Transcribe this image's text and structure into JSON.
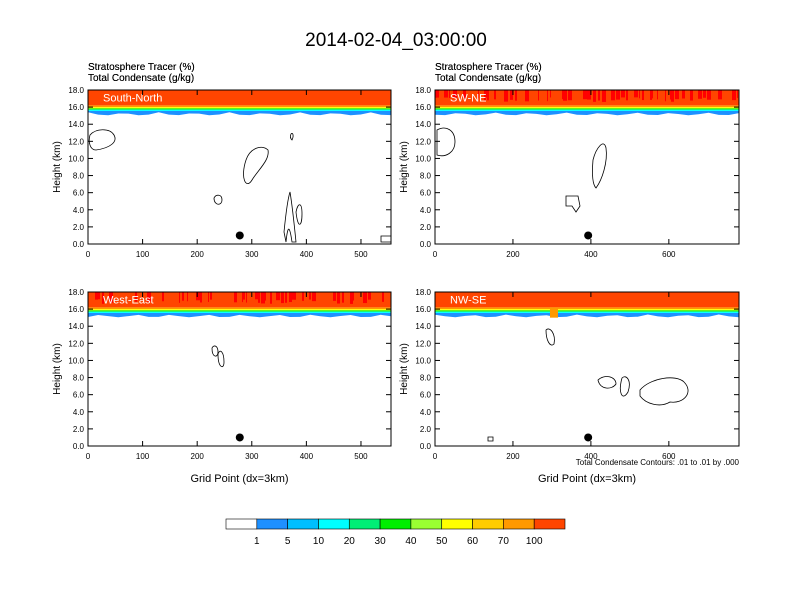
{
  "title": "2014-02-04_03:00:00",
  "chart_data": [
    {
      "type": "heatmap",
      "panel_label": "South-North",
      "field_label_1": "Stratosphere Tracer",
      "field_unit_1": "(%)",
      "field_label_2": "Total Condensate",
      "field_unit_2": "(g/kg)",
      "ylabel": "Height (km)",
      "xlabel": "",
      "ylim": [
        0,
        18
      ],
      "yticks": [
        "0.0",
        "2.0",
        "4.0",
        "6.0",
        "8.0",
        "10.0",
        "12.0",
        "14.0",
        "16.0",
        "18.0"
      ],
      "xlim": [
        0,
        555
      ],
      "xticks": [
        0,
        100,
        200,
        300,
        400,
        500
      ],
      "marker_x": 278,
      "marker_y": 1.0,
      "footnote": ""
    },
    {
      "type": "heatmap",
      "panel_label": "SW-NE",
      "field_label_1": "Stratosphere Tracer",
      "field_unit_1": "(%)",
      "field_label_2": "Total Condensate",
      "field_unit_2": "(g/kg)",
      "ylabel": "Height (km)",
      "xlabel": "",
      "ylim": [
        0,
        18
      ],
      "yticks": [
        "0.0",
        "2.0",
        "4.0",
        "6.0",
        "8.0",
        "10.0",
        "12.0",
        "14.0",
        "16.0",
        "18.0"
      ],
      "xlim": [
        0,
        780
      ],
      "xticks": [
        0,
        200,
        400,
        600
      ],
      "marker_x": 393,
      "marker_y": 1.0,
      "footnote": ""
    },
    {
      "type": "heatmap",
      "panel_label": "West-East",
      "field_label_1": "Stratosphere Tracer",
      "field_unit_1": "(%)",
      "field_label_2": "Total Condensate",
      "field_unit_2": "(g/kg)",
      "ylabel": "Height (km)",
      "xlabel": "Grid Point (dx=3km)",
      "ylim": [
        0,
        18
      ],
      "yticks": [
        "0.0",
        "2.0",
        "4.0",
        "6.0",
        "8.0",
        "10.0",
        "12.0",
        "14.0",
        "16.0",
        "18.0"
      ],
      "xlim": [
        0,
        555
      ],
      "xticks": [
        0,
        100,
        200,
        300,
        400,
        500
      ],
      "marker_x": 278,
      "marker_y": 1.0,
      "footnote": ""
    },
    {
      "type": "heatmap",
      "panel_label": "NW-SE",
      "field_label_1": "Stratosphere Tracer",
      "field_unit_1": "(%)",
      "field_label_2": "Total Condensate",
      "field_unit_2": "(g/kg)",
      "ylabel": "Height (km)",
      "xlabel": "Grid Point (dx=3km)",
      "ylim": [
        0,
        18
      ],
      "yticks": [
        "0.0",
        "2.0",
        "4.0",
        "6.0",
        "8.0",
        "10.0",
        "12.0",
        "14.0",
        "16.0",
        "18.0"
      ],
      "xlim": [
        0,
        780
      ],
      "xticks": [
        0,
        200,
        400,
        600
      ],
      "marker_x": 393,
      "marker_y": 1.0,
      "footnote": "Total Condensate Contours: .01 to .01 by .000"
    }
  ],
  "colorbar": {
    "labels": [
      "1",
      "5",
      "10",
      "20",
      "30",
      "40",
      "50",
      "60",
      "70",
      "100"
    ],
    "colors": [
      "#ffffff",
      "#1e90ff",
      "#00bfff",
      "#00ffff",
      "#00ee76",
      "#00ee00",
      "#9aff32",
      "#ffff00",
      "#ffcc00",
      "#ff9900",
      "#ff4500",
      "#ff0000"
    ]
  }
}
